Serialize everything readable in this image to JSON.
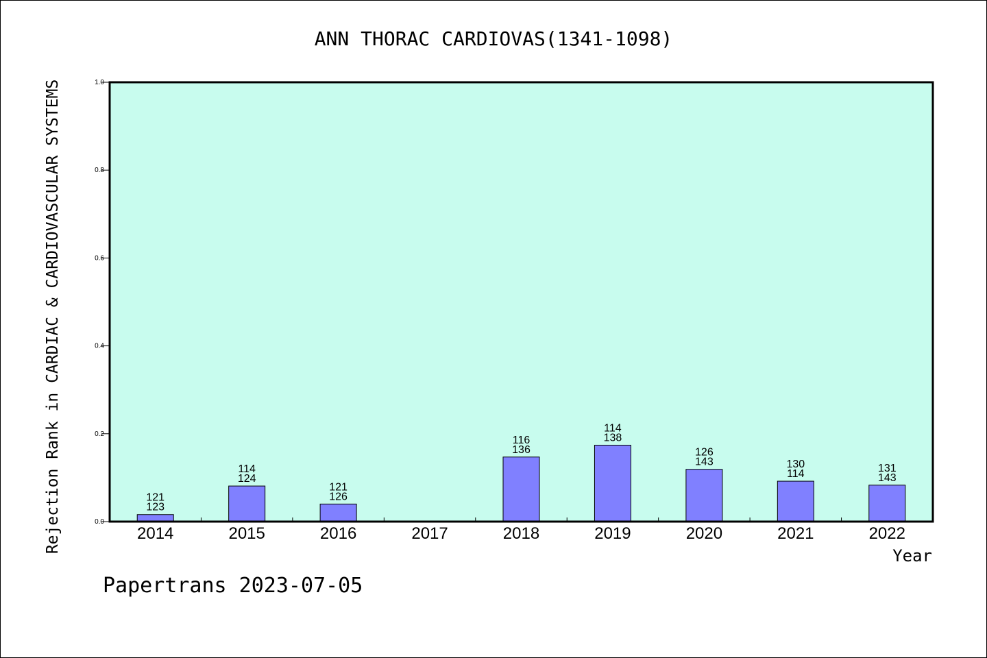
{
  "chart_data": {
    "type": "bar",
    "title": "ANN THORAC CARDIOVAS(1341-1098)",
    "ylabel": "Rejection Rank in CARDIAC & CARDIOVASCULAR SYSTEMS",
    "xlabel": "Year",
    "ylim": [
      0.0,
      1.0
    ],
    "yticks": [
      "0.0",
      "0.2",
      "0.4",
      "0.6",
      "0.8",
      "1.0"
    ],
    "categories": [
      "2014",
      "2015",
      "2016",
      "2017",
      "2018",
      "2019",
      "2020",
      "2021",
      "2022"
    ],
    "values": [
      0.016,
      0.081,
      0.04,
      null,
      0.147,
      0.174,
      0.119,
      0.092,
      0.083
    ],
    "labels_top": [
      "121",
      "114",
      "121",
      "",
      "116",
      "114",
      "126",
      "130",
      "131"
    ],
    "labels_bottom": [
      "123",
      "124",
      "126",
      "",
      "136",
      "138",
      "143",
      "114",
      "143"
    ],
    "grid": false,
    "colors": {
      "plot_background": "#c8fcee",
      "bar_fill": "#8080ff",
      "bar_stroke": "#000000"
    }
  },
  "footer": {
    "text": "Papertrans 2023-07-05"
  }
}
